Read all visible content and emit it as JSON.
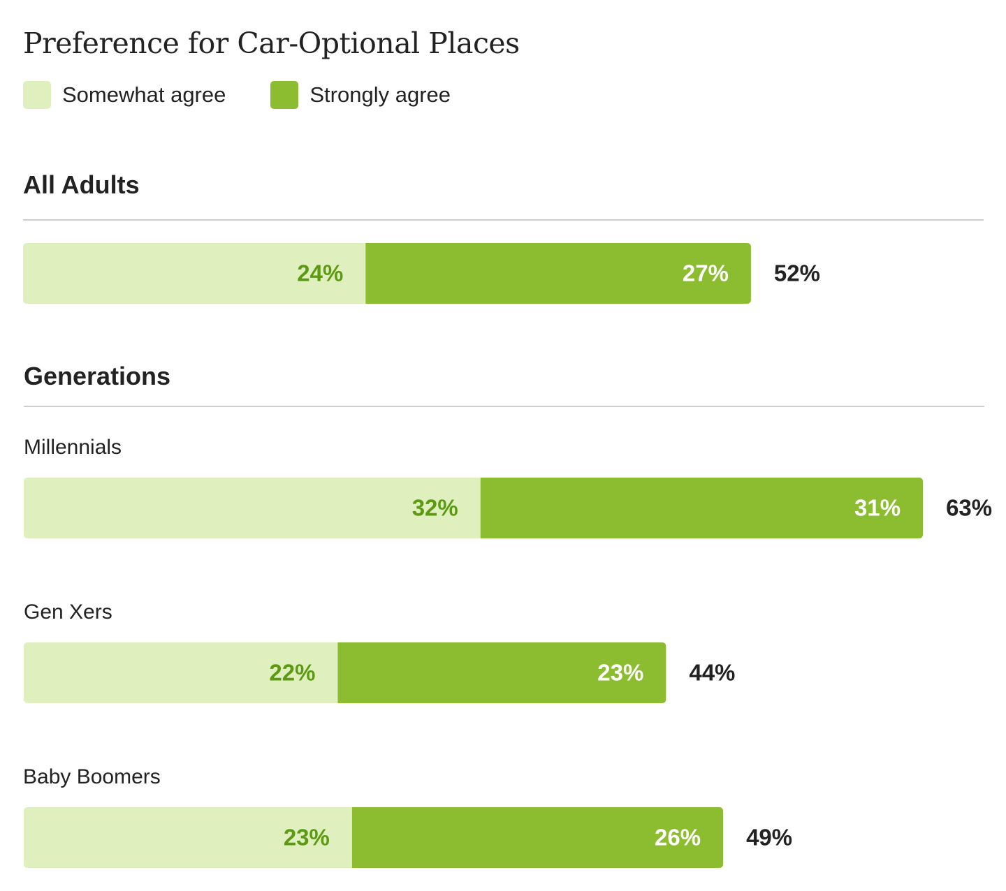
{
  "chart_data": {
    "type": "bar",
    "orientation": "horizontal",
    "stacked": true,
    "title": "Preference for Car-Optional Places",
    "legend": {
      "placement": "top-left",
      "items": [
        {
          "label": "Somewhat agree",
          "color": "#dfefbe"
        },
        {
          "label": "Strongly agree",
          "color": "#8cbd30"
        }
      ]
    },
    "colors": {
      "somewhat": "#dfefbe",
      "strongly": "#8cbd30",
      "somewhat_label": "#5b9a11",
      "strongly_label": "#ffffff",
      "total_label": "#222222"
    },
    "series": [
      {
        "name": "Somewhat agree",
        "labels": [
          "24%",
          "32%",
          "22%",
          "23%"
        ],
        "values": [
          24,
          32,
          22,
          23
        ]
      },
      {
        "name": "Strongly agree",
        "labels": [
          "27%",
          "31%",
          "23%",
          "26%"
        ],
        "values": [
          27,
          31,
          23,
          26
        ]
      }
    ],
    "sections": [
      {
        "heading": "All Adults",
        "groups": [
          {
            "label": "",
            "somewhat": 24,
            "strongly": 27,
            "somewhat_label": "24%",
            "strongly_label": "27%",
            "total": 52,
            "total_label": "52%"
          }
        ]
      },
      {
        "heading": "Generations",
        "groups": [
          {
            "label": "Millennials",
            "somewhat": 32,
            "strongly": 31,
            "somewhat_label": "32%",
            "strongly_label": "31%",
            "total": 63,
            "total_label": "63%"
          },
          {
            "label": "Gen Xers",
            "somewhat": 22,
            "strongly": 23,
            "somewhat_label": "22%",
            "strongly_label": "23%",
            "total": 44,
            "total_label": "44%"
          },
          {
            "label": "Baby Boomers",
            "somewhat": 23,
            "strongly": 26,
            "somewhat_label": "23%",
            "strongly_label": "26%",
            "total": 49,
            "total_label": "49%"
          }
        ]
      }
    ],
    "xlim": [
      0,
      63
    ],
    "grid": false
  }
}
